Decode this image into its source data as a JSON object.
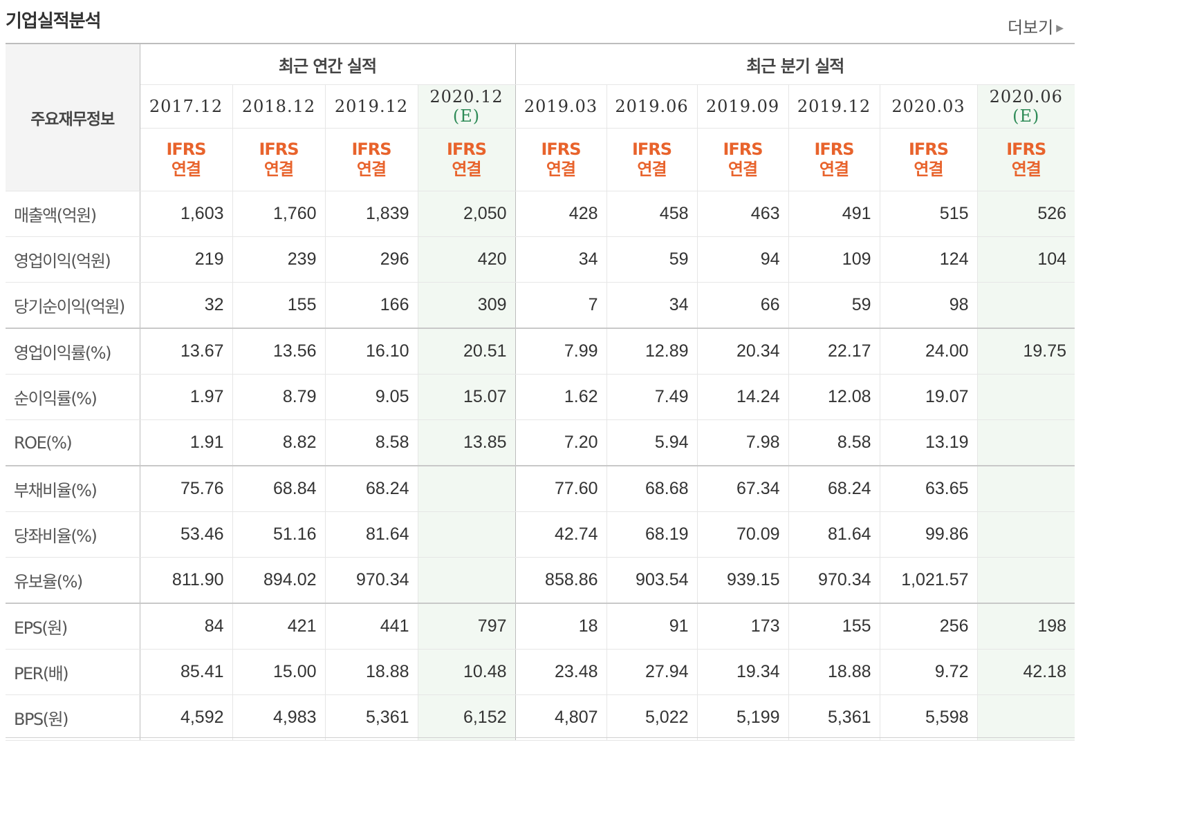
{
  "header": {
    "title": "기업실적분석",
    "more_label": "더보기"
  },
  "table": {
    "corner_label": "주요재무정보",
    "groups": [
      {
        "label": "최근 연간 실적"
      },
      {
        "label": "최근 분기 실적"
      }
    ],
    "periods": [
      {
        "label": "2017.12",
        "estimate": ""
      },
      {
        "label": "2018.12",
        "estimate": ""
      },
      {
        "label": "2019.12",
        "estimate": ""
      },
      {
        "label": "2020.12",
        "estimate": "(E)"
      },
      {
        "label": "2019.03",
        "estimate": ""
      },
      {
        "label": "2019.06",
        "estimate": ""
      },
      {
        "label": "2019.09",
        "estimate": ""
      },
      {
        "label": "2019.12",
        "estimate": ""
      },
      {
        "label": "2020.03",
        "estimate": ""
      },
      {
        "label": "2020.06",
        "estimate": "(E)"
      }
    ],
    "basis": {
      "line1": "IFRS",
      "line2": "연결"
    },
    "rows": [
      {
        "label": "매출액(억원)",
        "values": [
          "1,603",
          "1,760",
          "1,839",
          "2,050",
          "428",
          "458",
          "463",
          "491",
          "515",
          "526"
        ]
      },
      {
        "label": "영업이익(억원)",
        "values": [
          "219",
          "239",
          "296",
          "420",
          "34",
          "59",
          "94",
          "109",
          "124",
          "104"
        ]
      },
      {
        "label": "당기순이익(억원)",
        "values": [
          "32",
          "155",
          "166",
          "309",
          "7",
          "34",
          "66",
          "59",
          "98",
          ""
        ]
      },
      {
        "label": "영업이익률(%)",
        "values": [
          "13.67",
          "13.56",
          "16.10",
          "20.51",
          "7.99",
          "12.89",
          "20.34",
          "22.17",
          "24.00",
          "19.75"
        ]
      },
      {
        "label": "순이익률(%)",
        "values": [
          "1.97",
          "8.79",
          "9.05",
          "15.07",
          "1.62",
          "7.49",
          "14.24",
          "12.08",
          "19.07",
          ""
        ]
      },
      {
        "label": "ROE(%)",
        "values": [
          "1.91",
          "8.82",
          "8.58",
          "13.85",
          "7.20",
          "5.94",
          "7.98",
          "8.58",
          "13.19",
          ""
        ]
      },
      {
        "label": "부채비율(%)",
        "values": [
          "75.76",
          "68.84",
          "68.24",
          "",
          "77.60",
          "68.68",
          "67.34",
          "68.24",
          "63.65",
          ""
        ]
      },
      {
        "label": "당좌비율(%)",
        "values": [
          "53.46",
          "51.16",
          "81.64",
          "",
          "42.74",
          "68.19",
          "70.09",
          "81.64",
          "99.86",
          ""
        ]
      },
      {
        "label": "유보율(%)",
        "values": [
          "811.90",
          "894.02",
          "970.34",
          "",
          "858.86",
          "903.54",
          "939.15",
          "970.34",
          "1,021.57",
          ""
        ]
      },
      {
        "label": "EPS(원)",
        "values": [
          "84",
          "421",
          "441",
          "797",
          "18",
          "91",
          "173",
          "155",
          "256",
          "198"
        ]
      },
      {
        "label": "PER(배)",
        "values": [
          "85.41",
          "15.00",
          "18.88",
          "10.48",
          "23.48",
          "27.94",
          "19.34",
          "18.88",
          "9.72",
          "42.18"
        ]
      },
      {
        "label": "BPS(원)",
        "values": [
          "4,592",
          "4,983",
          "5,361",
          "6,152",
          "4,807",
          "5,022",
          "5,199",
          "5,361",
          "5,598",
          ""
        ]
      }
    ]
  }
}
